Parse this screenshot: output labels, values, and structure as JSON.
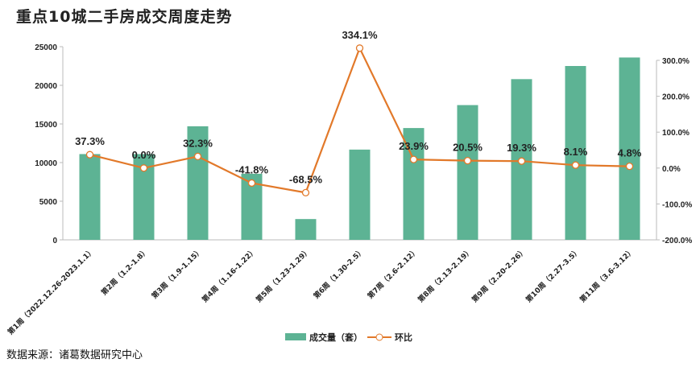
{
  "title": "重点10城二手房成交周度走势",
  "source": "数据来源：诸葛数据研究中心",
  "chart_data": {
    "type": "bar+line",
    "title": "重点10城二手房成交周度走势",
    "categories": [
      "第1周（2022.12.26-2023.1.1）",
      "第2周（1.2-1.8）",
      "第3周（1.9-1.15）",
      "第4周（1.16-1.22）",
      "第5周（1.23-1.29）",
      "第6周（1.30-2.5）",
      "第7周（2.6-2.12）",
      "第8周（2.13-2.19）",
      "第9周（2.20-2.26）",
      "第10周（2.27-3.5）",
      "第11周（3.6-3.12）"
    ],
    "series": [
      {
        "name": "成交量（套）",
        "type": "bar",
        "axis": "left",
        "color": "#5db394",
        "values": [
          11100,
          11100,
          14700,
          8550,
          2690,
          11680,
          14470,
          17440,
          20800,
          22500,
          23600
        ]
      },
      {
        "name": "环比",
        "type": "line",
        "axis": "right",
        "color": "#e2792a",
        "values": [
          37.3,
          0.0,
          32.3,
          -41.8,
          -68.5,
          334.1,
          23.9,
          20.5,
          19.3,
          8.1,
          4.8
        ],
        "labels": [
          "37.3%",
          "0.0%",
          "32.3%",
          "-41.8%",
          "-68.5%",
          "334.1%",
          "23.9%",
          "20.5%",
          "19.3%",
          "8.1%",
          "4.8%"
        ]
      }
    ],
    "y_left": {
      "range": [
        0,
        25000
      ],
      "ticks": [
        "0",
        "5000",
        "10000",
        "15000",
        "20000",
        "25000"
      ]
    },
    "y_right": {
      "range": [
        -200,
        300
      ],
      "ticks": [
        "-200.0%",
        "-100.0%",
        "0.0%",
        "100.0%",
        "200.0%",
        "300.0%"
      ]
    },
    "grid": false,
    "legend": "bottom"
  }
}
